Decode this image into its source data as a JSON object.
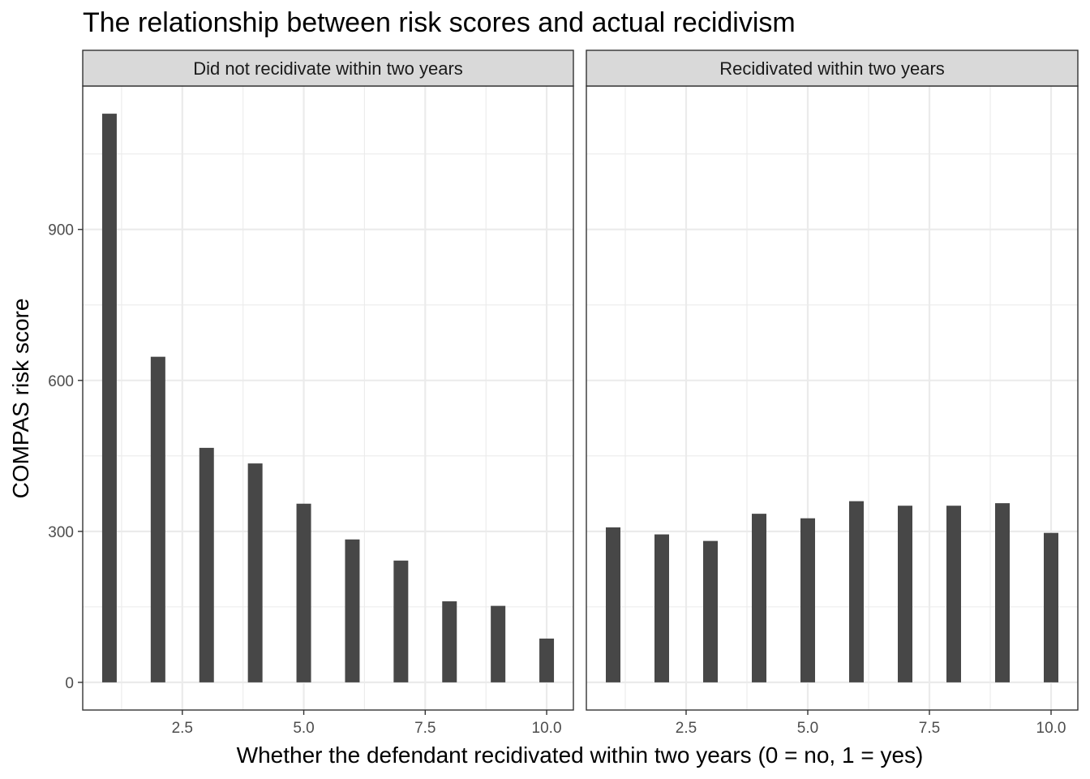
{
  "chart_data": {
    "type": "bar",
    "title": "The relationship between risk scores and actual recidivism",
    "xlabel": "Whether the defendant recidivated within two years (0 = no, 1 = yes)",
    "ylabel": "COMPAS risk score",
    "xlim": [
      0.45,
      10.55
    ],
    "ylim": [
      -55,
      1185
    ],
    "x_ticks": [
      2.5,
      5.0,
      7.5,
      10.0
    ],
    "x_tick_labels": [
      "2.5",
      "5.0",
      "7.5",
      "10.0"
    ],
    "y_ticks": [
      0,
      300,
      600,
      900
    ],
    "y_tick_labels": [
      "0",
      "300",
      "600",
      "900"
    ],
    "grid": true,
    "bar_color": "#474747",
    "panels": [
      {
        "label": "Did not recidivate within two years",
        "x": [
          1,
          2,
          3,
          4,
          5,
          6,
          7,
          8,
          9,
          10
        ],
        "values": [
          1130,
          647,
          466,
          435,
          355,
          284,
          242,
          161,
          152,
          87
        ]
      },
      {
        "label": "Recidivated within two years",
        "x": [
          1,
          2,
          3,
          4,
          5,
          6,
          7,
          8,
          9,
          10
        ],
        "values": [
          308,
          294,
          281,
          335,
          326,
          360,
          351,
          351,
          356,
          297
        ]
      }
    ]
  }
}
